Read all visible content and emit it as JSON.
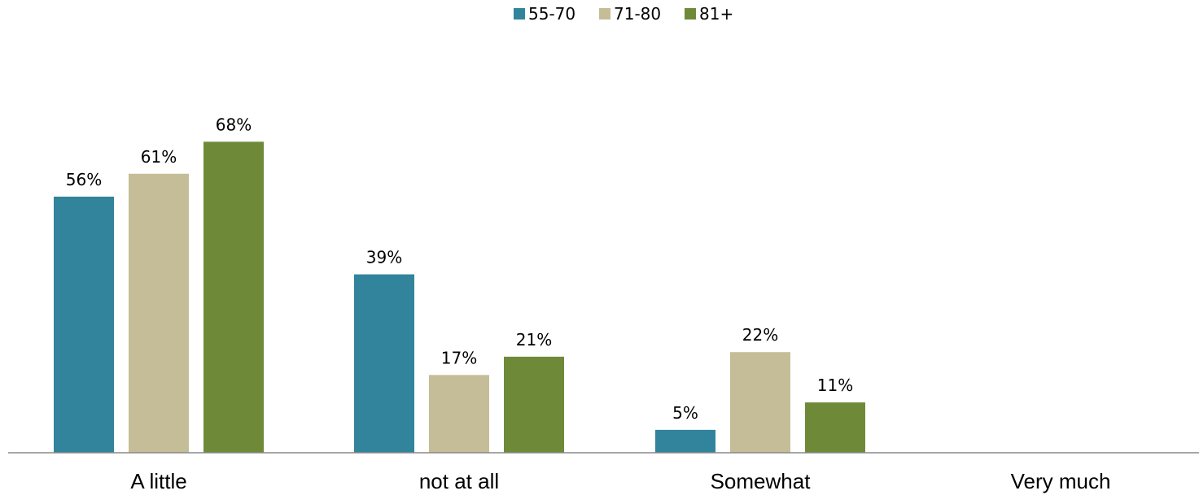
{
  "chart_data": {
    "type": "bar",
    "title": "",
    "xlabel": "",
    "ylabel": "",
    "categories": [
      "A little",
      "not at all",
      "Somewhat",
      "Very much"
    ],
    "series": [
      {
        "name": "55-70",
        "color": "#31849b",
        "values": [
          56,
          39,
          5,
          null
        ],
        "labels": [
          "56%",
          "39%",
          "5%",
          ""
        ]
      },
      {
        "name": "71-80",
        "color": "#c4bd97",
        "values": [
          61,
          17,
          22,
          null
        ],
        "labels": [
          "61%",
          "17%",
          "22%",
          ""
        ]
      },
      {
        "name": "81+",
        "color": "#6e8a38",
        "values": [
          68,
          21,
          11,
          null
        ],
        "labels": [
          "68%",
          "21%",
          "11%",
          ""
        ]
      }
    ],
    "ylim": [
      0,
      75
    ],
    "unit": "%",
    "grid": false,
    "legend": "top-center",
    "axis_color": "#888888"
  }
}
